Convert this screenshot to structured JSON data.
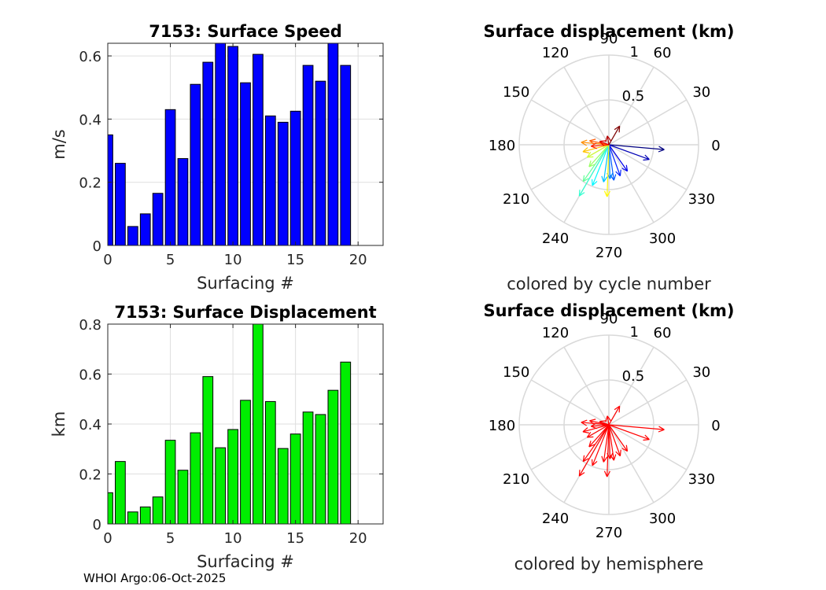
{
  "footer": "WHOI Argo:06-Oct-2025",
  "chart_data": [
    {
      "type": "bar",
      "title": "7153: Surface Speed",
      "xlabel": "Surfacing #",
      "ylabel": "m/s",
      "bar_color": "#0000ff",
      "xlim": [
        0,
        22
      ],
      "ylim": [
        0,
        0.64
      ],
      "xticks": [
        0,
        5,
        10,
        15,
        20
      ],
      "yticks": [
        0,
        0.2,
        0.4,
        0.6
      ],
      "x": [
        0,
        1,
        2,
        3,
        4,
        5,
        6,
        7,
        8,
        9,
        10,
        11,
        12,
        13,
        14,
        15,
        16,
        17,
        18,
        19
      ],
      "values": [
        0.35,
        0.26,
        0.06,
        0.1,
        0.165,
        0.43,
        0.275,
        0.51,
        0.58,
        0.64,
        0.63,
        0.515,
        0.605,
        0.41,
        0.39,
        0.425,
        0.57,
        0.52,
        0.64,
        0.57
      ],
      "grid": true
    },
    {
      "type": "bar",
      "title": "7153: Surface Displacement",
      "xlabel": "Surfacing #",
      "ylabel": "km",
      "bar_color": "#00ee00",
      "xlim": [
        0,
        22
      ],
      "ylim": [
        0,
        0.8
      ],
      "xticks": [
        0,
        5,
        10,
        15,
        20
      ],
      "yticks": [
        0,
        0.2,
        0.4,
        0.6,
        0.8
      ],
      "x": [
        0,
        1,
        2,
        3,
        4,
        5,
        6,
        7,
        8,
        9,
        10,
        11,
        12,
        13,
        14,
        15,
        16,
        17,
        18,
        19
      ],
      "values": [
        0.125,
        0.25,
        0.048,
        0.068,
        0.108,
        0.335,
        0.215,
        0.365,
        0.59,
        0.305,
        0.378,
        0.495,
        0.8,
        0.49,
        0.302,
        0.36,
        0.448,
        0.438,
        0.535,
        0.648
      ],
      "grid": true
    },
    {
      "type": "polar-arrows",
      "title": "Surface displacement (km)",
      "caption": "colored by cycle number",
      "r_max": 1,
      "r_ticks": [
        "0.5",
        "1"
      ],
      "angle_ticks": [
        "0",
        "30",
        "60",
        "90",
        "120",
        "150",
        "180",
        "210",
        "240",
        "270",
        "300",
        "330"
      ],
      "color_mode": "cycle",
      "vectors": [
        {
          "angle": 355,
          "r": 0.62
        },
        {
          "angle": 340,
          "r": 0.48
        },
        {
          "angle": 305,
          "r": 0.36
        },
        {
          "angle": 290,
          "r": 0.37
        },
        {
          "angle": 278,
          "r": 0.4
        },
        {
          "angle": 272,
          "r": 0.38
        },
        {
          "angle": 262,
          "r": 0.42
        },
        {
          "angle": 248,
          "r": 0.49
        },
        {
          "angle": 240,
          "r": 0.66
        },
        {
          "angle": 235,
          "r": 0.5
        },
        {
          "angle": 228,
          "r": 0.33
        },
        {
          "angle": 210,
          "r": 0.28
        },
        {
          "angle": 268,
          "r": 0.58
        },
        {
          "angle": 195,
          "r": 0.3
        },
        {
          "angle": 175,
          "r": 0.31
        },
        {
          "angle": 168,
          "r": 0.22
        },
        {
          "angle": 185,
          "r": 0.2
        },
        {
          "angle": 160,
          "r": 0.11
        },
        {
          "angle": 100,
          "r": 0.1
        },
        {
          "angle": 60,
          "r": 0.24
        }
      ]
    },
    {
      "type": "polar-arrows",
      "title": "Surface displacement (km)",
      "caption": "colored by hemisphere",
      "r_max": 1,
      "r_ticks": [
        "0.5",
        "1"
      ],
      "angle_ticks": [
        "0",
        "30",
        "60",
        "90",
        "120",
        "150",
        "180",
        "210",
        "240",
        "270",
        "300",
        "330"
      ],
      "color_mode": "hemisphere",
      "arrow_color": "#ff0000",
      "vectors": [
        {
          "angle": 355,
          "r": 0.62
        },
        {
          "angle": 340,
          "r": 0.48
        },
        {
          "angle": 305,
          "r": 0.36
        },
        {
          "angle": 290,
          "r": 0.37
        },
        {
          "angle": 278,
          "r": 0.4
        },
        {
          "angle": 272,
          "r": 0.38
        },
        {
          "angle": 262,
          "r": 0.42
        },
        {
          "angle": 248,
          "r": 0.49
        },
        {
          "angle": 240,
          "r": 0.66
        },
        {
          "angle": 235,
          "r": 0.5
        },
        {
          "angle": 228,
          "r": 0.33
        },
        {
          "angle": 210,
          "r": 0.28
        },
        {
          "angle": 268,
          "r": 0.58
        },
        {
          "angle": 195,
          "r": 0.3
        },
        {
          "angle": 175,
          "r": 0.31
        },
        {
          "angle": 168,
          "r": 0.22
        },
        {
          "angle": 185,
          "r": 0.2
        },
        {
          "angle": 160,
          "r": 0.11
        },
        {
          "angle": 100,
          "r": 0.1
        },
        {
          "angle": 60,
          "r": 0.24
        }
      ]
    }
  ]
}
